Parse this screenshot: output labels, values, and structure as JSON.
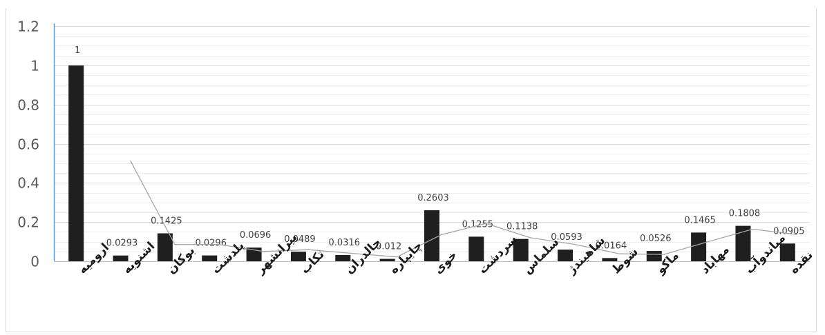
{
  "chart_data": {
    "type": "bar",
    "title": "",
    "xlabel": "",
    "ylabel": "",
    "ylim": [
      0,
      1.2
    ],
    "yticks": [
      0,
      0.2,
      0.4,
      0.6,
      0.8,
      1,
      1.2
    ],
    "ytick_labels": [
      "0",
      "0.2",
      "0.4",
      "0.6",
      "0.8",
      "1",
      "1.2"
    ],
    "grid": true,
    "legend": "none",
    "categories": [
      "ارومیه",
      "اشنویه",
      "بوکان",
      "پلدشت",
      "پیرانشهر",
      "تکاب",
      "چالدران",
      "چایپاره",
      "خوی",
      "سردشت",
      "سلماس",
      "شاهیندژ",
      "شوط",
      "ماکو",
      "مهاباد",
      "میاندوآب",
      "نقده"
    ],
    "values": [
      1,
      0.0293,
      0.1425,
      0.0296,
      0.0696,
      0.0489,
      0.0316,
      0.012,
      0.2603,
      0.1255,
      0.1138,
      0.0593,
      0.0164,
      0.0526,
      0.1465,
      0.1808,
      0.0905
    ],
    "value_labels": [
      "1",
      "0.0293",
      "0.1425",
      "0.0296",
      "0.0696",
      "0.0489",
      "0.0316",
      "0.012",
      "0.2603",
      "0.1255",
      "0.1138",
      "0.0593",
      "0.0164",
      "0.0526",
      "0.1465",
      "0.1808",
      "0.0905"
    ],
    "trendline": {
      "type": "moving-average",
      "start_category_index": 1,
      "values": [
        0.515,
        0.086,
        0.086,
        0.05,
        0.059,
        0.04,
        0.022,
        0.136,
        0.193,
        0.12,
        0.086,
        0.038,
        0.035,
        0.1,
        0.164,
        0.136
      ]
    },
    "colors": {
      "bar": "#1f1f1f",
      "trendline": "#a6a6a6",
      "grid": "#d9d9d9",
      "axis": "#bfbfbf"
    }
  }
}
